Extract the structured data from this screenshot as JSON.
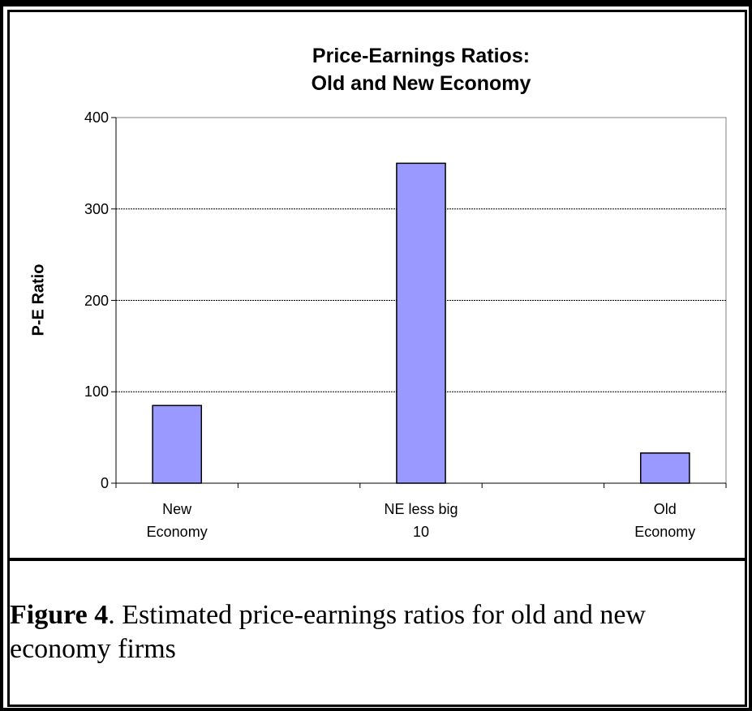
{
  "chart_data": {
    "type": "bar",
    "title": "Price-Earnings Ratios:\nOld and New Economy",
    "y_label": "P-E Ratio",
    "categories": [
      "New\nEconomy",
      null,
      "NE less big\n10",
      null,
      "Old\nEconomy"
    ],
    "values": [
      85,
      null,
      350,
      null,
      33
    ],
    "color": "#9999ff",
    "ylim": [
      0,
      400
    ],
    "yticks": [
      0,
      100,
      200,
      300,
      400
    ],
    "grid": true
  },
  "caption": {
    "label": "Figure 4",
    "text": ". Estimated price-earnings ratios for old and new economy firms"
  }
}
